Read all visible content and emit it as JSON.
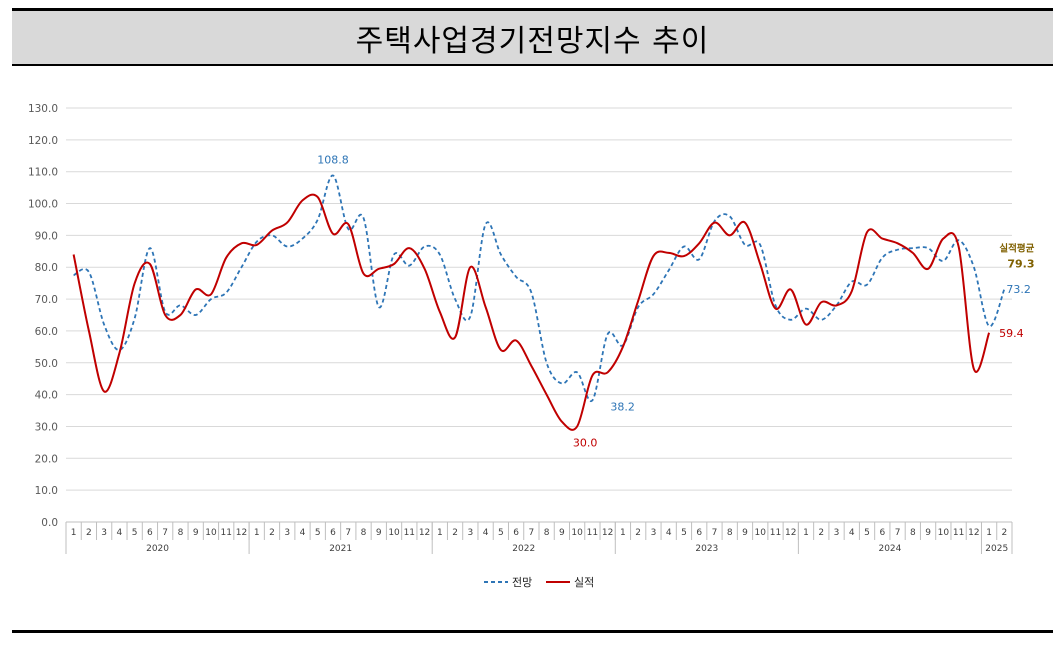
{
  "title": "주택사업경기전망지수 추이",
  "colors": {
    "forecast": "#2e75b6",
    "actual": "#c00000",
    "avg_label": "#7f6000"
  },
  "chart_data": {
    "type": "line",
    "title": "주택사업경기전망지수 추이",
    "ylim": [
      0,
      130
    ],
    "yticks": [
      "0.0",
      "10.0",
      "20.0",
      "30.0",
      "40.0",
      "50.0",
      "60.0",
      "70.0",
      "80.0",
      "90.0",
      "100.0",
      "110.0",
      "120.0",
      "130.0"
    ],
    "grid": true,
    "legend_position": "bottom",
    "month_labels": [
      "1",
      "2",
      "3",
      "4",
      "5",
      "6",
      "7",
      "8",
      "9",
      "10",
      "11",
      "12",
      "1",
      "2",
      "3",
      "4",
      "5",
      "6",
      "7",
      "8",
      "9",
      "10",
      "11",
      "12",
      "1",
      "2",
      "3",
      "4",
      "5",
      "6",
      "7",
      "8",
      "9",
      "10",
      "11",
      "12",
      "1",
      "2",
      "3",
      "4",
      "5",
      "6",
      "7",
      "8",
      "9",
      "10",
      "11",
      "12",
      "1",
      "2",
      "3",
      "4",
      "5",
      "6",
      "7",
      "8",
      "9",
      "10",
      "11",
      "12",
      "1",
      "2"
    ],
    "years": [
      {
        "label": "2020",
        "months": 12
      },
      {
        "label": "2021",
        "months": 12
      },
      {
        "label": "2022",
        "months": 12
      },
      {
        "label": "2023",
        "months": 12
      },
      {
        "label": "2024",
        "months": 12
      },
      {
        "label": "2025",
        "months": 2
      }
    ],
    "series": [
      {
        "name": "전망",
        "style": "dashed",
        "values": [
          77.5,
          78.5,
          62,
          54,
          64,
          86,
          66,
          68,
          65,
          70,
          72,
          80,
          88,
          90,
          86.5,
          89,
          95,
          108.8,
          92,
          95.5,
          67.5,
          84,
          80.5,
          86.5,
          84,
          70,
          64.5,
          93.5,
          84,
          77,
          72,
          50,
          43.5,
          47,
          38.2,
          59,
          55.5,
          67.5,
          71.5,
          79,
          86.5,
          82.5,
          94.5,
          96,
          87,
          87,
          68,
          63.5,
          67,
          63.5,
          68,
          75.5,
          74.5,
          83,
          85.5,
          86,
          86,
          82,
          88.5,
          80,
          61.5,
          73.2
        ]
      },
      {
        "name": "실적",
        "style": "solid",
        "values": [
          84,
          60,
          41,
          53,
          75,
          81,
          65,
          65,
          73,
          71.5,
          83,
          87.5,
          87,
          91.5,
          94,
          101,
          102,
          90.5,
          93.5,
          78,
          79.5,
          81,
          86,
          79.5,
          66,
          58,
          80,
          67.5,
          54,
          57,
          49,
          40,
          31.5,
          30.0,
          46,
          47,
          55,
          69.5,
          83.5,
          84.5,
          83.5,
          87.5,
          94,
          90,
          94,
          81,
          67,
          73,
          62,
          69,
          68,
          72.5,
          91,
          89,
          87.5,
          84.5,
          79.5,
          89,
          86.5,
          48,
          59.4
        ]
      }
    ],
    "data_labels": [
      {
        "series": "전망",
        "index": 17,
        "text": "108.8"
      },
      {
        "series": "전망",
        "index": 34,
        "text": "38.2"
      },
      {
        "series": "실적",
        "index": 33,
        "text": "30.0"
      },
      {
        "series": "전망",
        "index": 61,
        "text": "73.2"
      },
      {
        "series": "실적",
        "index": 60,
        "text": "59.4"
      }
    ],
    "annotation": {
      "label": "실적평균",
      "value": "79.3"
    }
  }
}
